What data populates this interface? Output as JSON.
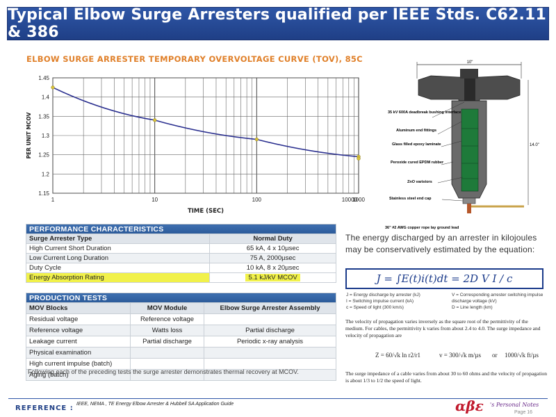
{
  "title": "Typical Elbow Surge Arresters qualified per  IEEE Stds. C62.11 & 386",
  "chart_data": {
    "type": "line",
    "title": "ELBOW SURGE ARRESTER TEMPORARY OVERVOLTAGE CURVE (TOV), 85C",
    "xlabel": "TIME (SEC)",
    "ylabel": "PER UNIT MCOV",
    "x_scale": "log",
    "xlim": [
      1,
      1000
    ],
    "ylim": [
      1.15,
      1.45
    ],
    "x_ticks": [
      "1",
      "10",
      "100",
      "1000",
      "10000"
    ],
    "y_ticks": [
      "1.15",
      "1.2",
      "1.25",
      "1.3",
      "1.35",
      "1.4",
      "1.45"
    ],
    "grid": true,
    "series": [
      {
        "x": [
          1,
          10,
          100,
          1000,
          10000
        ],
        "y": [
          1.425,
          1.34,
          1.29,
          1.245,
          1.24
        ],
        "color": "#2a2f8f"
      }
    ],
    "marker_color": "#d8c23a"
  },
  "performance": {
    "header": "PERFORMANCE CHARACTERISTICS",
    "col1": "Surge Arrester Type",
    "col2": "Normal Duty",
    "rows": [
      {
        "label": "High Current Short Duration",
        "value": "65 kA, 4 x 10µsec"
      },
      {
        "label": "Low Current Long Duration",
        "value": "75 A, 2000µsec"
      },
      {
        "label": "Duty Cycle",
        "value": "10 kA, 8 x 20µsec"
      },
      {
        "label": "Energy Absorption Rating",
        "value": "5.1 kJ/kV MCOV"
      }
    ]
  },
  "production": {
    "header": "PRODUCTION TESTS",
    "col1": "MOV Blocks",
    "col2": "MOV Module",
    "col3": "Elbow Surge Arrester Assembly",
    "rows": [
      {
        "a": "Residual voltage",
        "b": "Reference voltage",
        "c": ""
      },
      {
        "a": "Reference voltage",
        "b": "Watts loss",
        "c": "Partial discharge"
      },
      {
        "a": "Leakage current",
        "b": "Partial discharge",
        "c": "Periodic x-ray analysis"
      },
      {
        "a": "Physical examination",
        "b": "",
        "c": ""
      },
      {
        "a": "High current impulse (batch)",
        "b": "",
        "c": ""
      },
      {
        "a": "Aging (batch)",
        "b": "",
        "c": ""
      }
    ],
    "footnote": "Following each of the preceding tests the surge arrester demonstrates thermal recovery at MCOV."
  },
  "elbow": {
    "dim_top": "10\"",
    "dim_side": "14.0\"",
    "labels": [
      "35 kV 600A deadbreak bushing interface",
      "Aluminum end fittings",
      "Glass filled epoxy laminate",
      "Peroxide cured EPDM rubber",
      "ZnO varistors",
      "Stainless steel end cap",
      "36\" #2 AWG copper rope lay ground lead"
    ]
  },
  "energy": {
    "text": "The energy discharged by an arrester in kilojoules may be conservatively estimated by the equation:",
    "formula": "J = ∫E(t)i(t)dt  = 2D  V  I  / c",
    "legend_left": [
      "J = Energy discharge by arrester (kJ)",
      "I = Switching impulse current (kA)",
      "c = Speed of light (300 km/s)"
    ],
    "legend_right": [
      "V = Corresponding arrester switching impulse discharge voltage (kV)",
      "D = Line length (km)"
    ],
    "propagation": "The velocity of propagation varies inversely as the square root of the permittivity of the medium.  For cables, the permittivity k varies from about 2.4 to 4.0. The surge impedance and velocity of propagation are",
    "eq_z": "Z = 60/√k ln r2/r1",
    "eq_v": "v = 300/√k m/µs",
    "eq_or": "or",
    "eq_v2": "1000/√k ft/µs",
    "surge": "The surge impedance of a cable varies from about 30 to 60 ohms and the velocity of propagation is about 1/3 to 1/2 the speed of light."
  },
  "footer": {
    "ref_label": "REFERENCE :",
    "ref_text": "IEEE, NEMA , TE Energy Elbow Arrester & Hubbell SA Application Guide",
    "logo": "αβε",
    "logo_sub": "'s Personal Notes",
    "page": "Page   16"
  }
}
